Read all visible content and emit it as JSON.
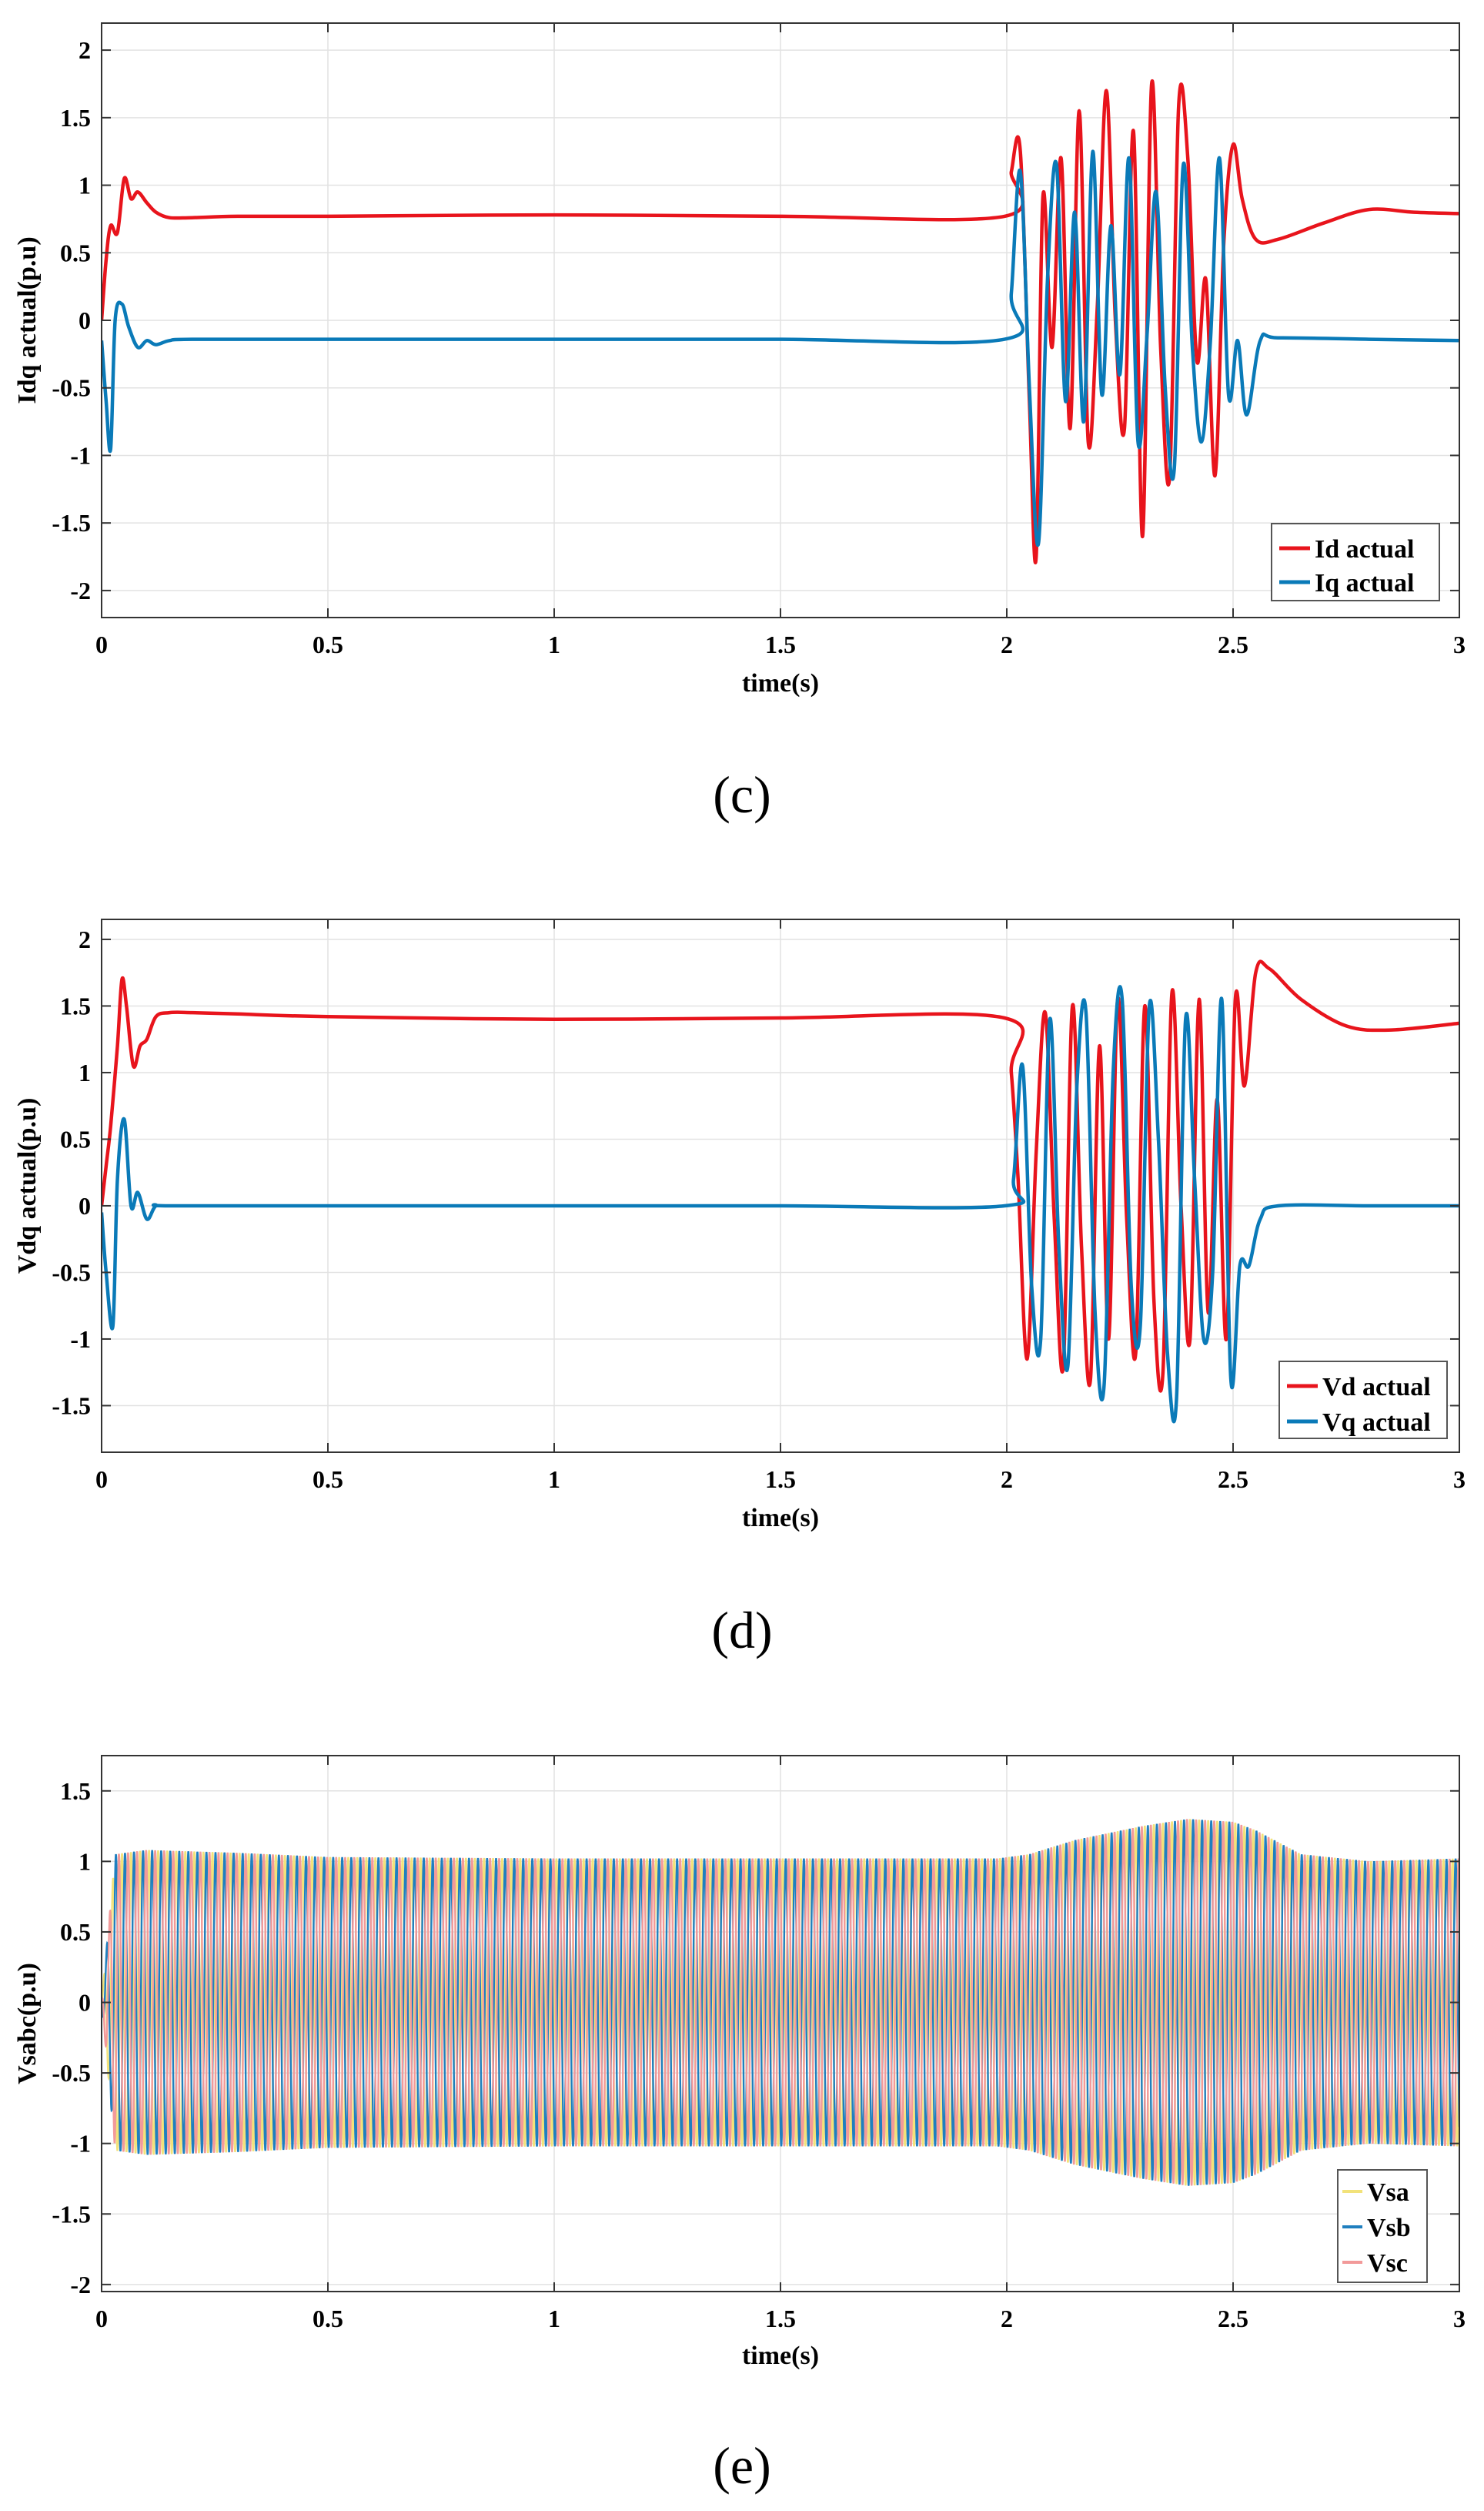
{
  "chart_data": [
    {
      "type": "line",
      "caption_letter": "c",
      "xlabel": "time(s)",
      "ylabel": "Idq actual(p.u)",
      "xlim": [
        0,
        3
      ],
      "ylim": [
        -2.2,
        2.2
      ],
      "xticks": [
        0,
        0.5,
        1,
        1.5,
        2,
        2.5,
        3
      ],
      "xtick_labels": [
        "0",
        "0.5",
        "1",
        "1.5",
        "2",
        "2.5",
        "3"
      ],
      "yticks": [
        -2,
        -1.5,
        -1,
        -0.5,
        0,
        0.5,
        1,
        1.5,
        2
      ],
      "ytick_labels": [
        "-2",
        "-1.5",
        "-1",
        "-0.5",
        "0",
        "0.5",
        "1",
        "1.5",
        "2"
      ],
      "grid": true,
      "legend_position": "bottom-right",
      "series": [
        {
          "name": "Id actual",
          "color": "#e8141c",
          "x": [
            0,
            0.01,
            0.02,
            0.035,
            0.05,
            0.065,
            0.08,
            0.1,
            0.12,
            0.15,
            0.2,
            0.3,
            0.5,
            1.0,
            1.5,
            1.995,
            2.01,
            2.03,
            2.05,
            2.065,
            2.08,
            2.1,
            2.12,
            2.14,
            2.16,
            2.18,
            2.2,
            2.22,
            2.24,
            2.26,
            2.28,
            2.3,
            2.32,
            2.34,
            2.36,
            2.38,
            2.4,
            2.42,
            2.44,
            2.46,
            2.48,
            2.5,
            2.52,
            2.55,
            2.6,
            2.7,
            2.8,
            2.9,
            3.0
          ],
          "y": [
            0,
            0.45,
            0.7,
            0.65,
            1.05,
            0.9,
            0.95,
            0.87,
            0.8,
            0.76,
            0.76,
            0.77,
            0.77,
            0.78,
            0.77,
            0.77,
            1.1,
            1.25,
            -0.6,
            -1.75,
            0.92,
            -0.2,
            1.2,
            -0.8,
            1.55,
            -0.9,
            0.1,
            1.7,
            0.0,
            -0.8,
            1.4,
            -1.6,
            1.75,
            -0.2,
            -1.15,
            1.6,
            1.2,
            -0.3,
            0.3,
            -1.15,
            0.6,
            1.3,
            0.9,
            0.6,
            0.6,
            0.72,
            0.82,
            0.8,
            0.79
          ]
        },
        {
          "name": "Iq actual",
          "color": "#0a7ab8",
          "x": [
            0,
            0.01,
            0.02,
            0.03,
            0.045,
            0.06,
            0.08,
            0.1,
            0.12,
            0.15,
            0.2,
            0.5,
            1.0,
            1.5,
            1.995,
            2.01,
            2.03,
            2.05,
            2.07,
            2.09,
            2.11,
            2.13,
            2.15,
            2.17,
            2.19,
            2.21,
            2.23,
            2.25,
            2.27,
            2.29,
            2.31,
            2.33,
            2.35,
            2.37,
            2.39,
            2.41,
            2.43,
            2.45,
            2.47,
            2.49,
            2.51,
            2.53,
            2.56,
            2.6,
            2.8,
            3.0
          ],
          "y": [
            -0.15,
            -0.6,
            -0.95,
            0.0,
            0.12,
            -0.05,
            -0.2,
            -0.15,
            -0.18,
            -0.15,
            -0.14,
            -0.14,
            -0.14,
            -0.14,
            -0.14,
            0.2,
            1.1,
            -0.5,
            -1.65,
            0.3,
            1.15,
            -0.6,
            0.8,
            -0.75,
            1.25,
            -0.55,
            0.7,
            -0.4,
            1.2,
            -0.9,
            -0.1,
            0.95,
            -0.5,
            -1.1,
            1.15,
            -0.2,
            -0.9,
            -0.15,
            1.2,
            -0.55,
            -0.15,
            -0.7,
            -0.15,
            -0.13,
            -0.14,
            -0.15
          ]
        }
      ]
    },
    {
      "type": "line",
      "caption_letter": "d",
      "xlabel": "time(s)",
      "ylabel": "Vdq actual(p.u)",
      "xlim": [
        0,
        3
      ],
      "ylim": [
        -1.85,
        2.15
      ],
      "xticks": [
        0,
        0.5,
        1,
        1.5,
        2,
        2.5,
        3
      ],
      "xtick_labels": [
        "0",
        "0.5",
        "1",
        "1.5",
        "2",
        "2.5",
        "3"
      ],
      "yticks": [
        -1.5,
        -1,
        -0.5,
        0,
        0.5,
        1,
        1.5,
        2
      ],
      "ytick_labels": [
        "-1.5",
        "-1",
        "-0.5",
        "0",
        "0.5",
        "1",
        "1.5",
        "2"
      ],
      "grid": true,
      "legend_position": "bottom-right",
      "series": [
        {
          "name": "Vd actual",
          "color": "#e8141c",
          "x": [
            0,
            0.01,
            0.02,
            0.035,
            0.045,
            0.055,
            0.07,
            0.085,
            0.1,
            0.12,
            0.15,
            0.2,
            0.3,
            0.5,
            1.0,
            1.5,
            1.995,
            2.01,
            2.025,
            2.045,
            2.065,
            2.085,
            2.105,
            2.125,
            2.145,
            2.165,
            2.185,
            2.205,
            2.225,
            2.245,
            2.265,
            2.285,
            2.305,
            2.325,
            2.345,
            2.365,
            2.385,
            2.405,
            2.425,
            2.445,
            2.465,
            2.485,
            2.505,
            2.525,
            2.55,
            2.58,
            2.65,
            2.75,
            2.85,
            3.0
          ],
          "y": [
            0,
            0.3,
            0.6,
            1.2,
            1.7,
            1.5,
            1.05,
            1.2,
            1.25,
            1.42,
            1.45,
            1.45,
            1.44,
            1.42,
            1.4,
            1.41,
            1.41,
            1.0,
            0.2,
            -1.15,
            0.4,
            1.45,
            -0.1,
            -1.2,
            1.5,
            -0.3,
            -1.3,
            1.2,
            -1.0,
            1.55,
            -0.1,
            -1.1,
            1.5,
            -0.7,
            -1.25,
            1.6,
            0.0,
            -1.0,
            1.55,
            -0.8,
            0.8,
            -1.0,
            1.55,
            0.9,
            1.75,
            1.78,
            1.55,
            1.35,
            1.32,
            1.37
          ]
        },
        {
          "name": "Vq actual",
          "color": "#0a7ab8",
          "x": [
            0,
            0.01,
            0.025,
            0.035,
            0.05,
            0.065,
            0.08,
            0.1,
            0.12,
            0.15,
            0.5,
            1.0,
            1.5,
            1.995,
            2.015,
            2.035,
            2.055,
            2.075,
            2.095,
            2.115,
            2.135,
            2.155,
            2.175,
            2.195,
            2.215,
            2.235,
            2.255,
            2.275,
            2.295,
            2.315,
            2.335,
            2.355,
            2.375,
            2.395,
            2.415,
            2.435,
            2.455,
            2.475,
            2.495,
            2.515,
            2.535,
            2.56,
            2.6,
            2.8,
            3.0
          ],
          "y": [
            -0.05,
            -0.5,
            -0.9,
            0.2,
            0.65,
            0.0,
            0.1,
            -0.1,
            0.0,
            0.0,
            0.0,
            0.0,
            0.0,
            0.0,
            0.2,
            1.05,
            -0.6,
            -1.0,
            1.4,
            -0.3,
            -1.2,
            0.9,
            1.45,
            -0.8,
            -1.35,
            1.0,
            1.55,
            -0.6,
            -0.9,
            1.5,
            0.5,
            -1.1,
            -1.45,
            1.4,
            0.2,
            -1.0,
            -0.5,
            1.55,
            -1.3,
            -0.45,
            -0.45,
            -0.1,
            0.0,
            0.0,
            0.0
          ]
        }
      ]
    },
    {
      "type": "line",
      "caption_letter": "e",
      "xlabel": "time(s)",
      "ylabel": "Vsabc(p.u)",
      "xlim": [
        0,
        3
      ],
      "ylim": [
        -2.05,
        1.75
      ],
      "xticks": [
        0,
        0.5,
        1,
        1.5,
        2,
        2.5,
        3
      ],
      "xtick_labels": [
        "0",
        "0.5",
        "1",
        "1.5",
        "2",
        "2.5",
        "3"
      ],
      "yticks": [
        -2,
        -1.5,
        -1,
        -0.5,
        0,
        0.5,
        1,
        1.5
      ],
      "ytick_labels": [
        "-2",
        "-1.5",
        "-1",
        "-0.5",
        "0",
        "0.5",
        "1",
        "1.5"
      ],
      "grid": true,
      "legend_position": "bottom-right",
      "frequency_hz": 50,
      "amplitude_envelope": {
        "t": [
          0,
          0.03,
          0.1,
          0.3,
          0.5,
          1.0,
          1.5,
          1.98,
          2.05,
          2.15,
          2.3,
          2.4,
          2.5,
          2.55,
          2.65,
          2.8,
          3.0
        ],
        "amp": [
          0.0,
          1.05,
          1.08,
          1.06,
          1.03,
          1.02,
          1.02,
          1.02,
          1.05,
          1.15,
          1.25,
          1.3,
          1.28,
          1.22,
          1.05,
          1.0,
          1.02
        ]
      },
      "series": [
        {
          "name": "Vsa",
          "color": "#f2e27a",
          "phase_deg": 0
        },
        {
          "name": "Vsb",
          "color": "#1f7fbf",
          "phase_deg": -120
        },
        {
          "name": "Vsc",
          "color": "#f29a9a",
          "phase_deg": 120
        }
      ]
    }
  ],
  "captions": [
    "(c)",
    "(d)",
    "(e)"
  ]
}
